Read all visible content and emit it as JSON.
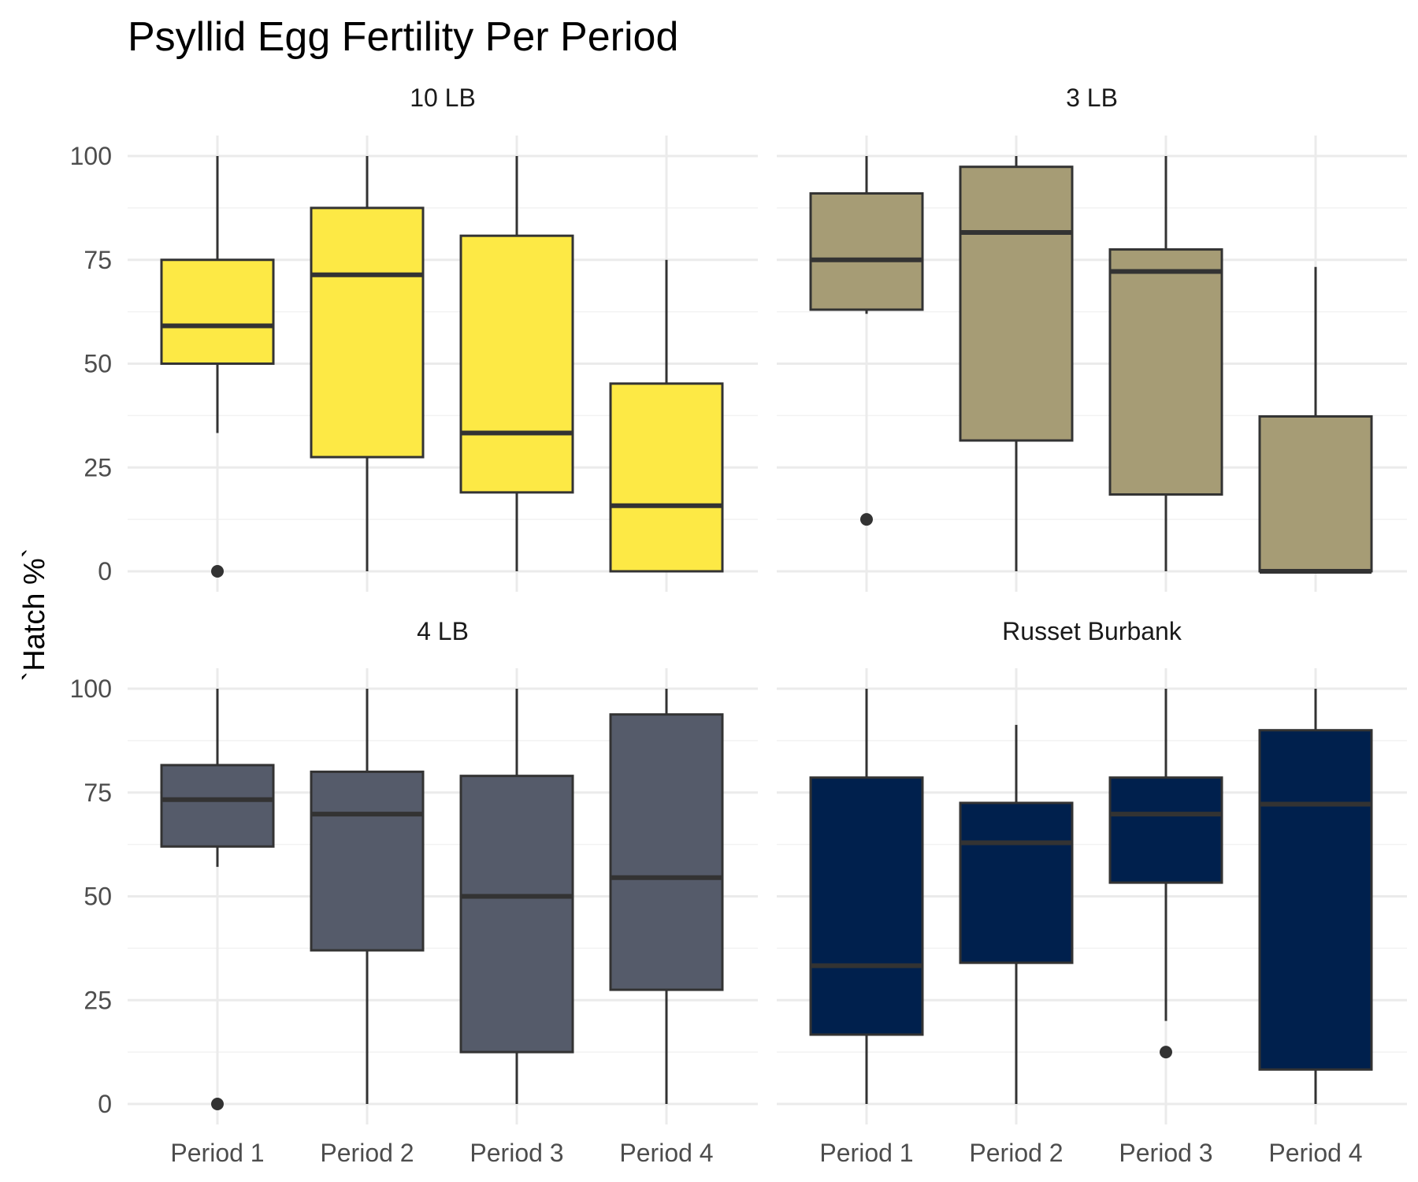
{
  "chart_data": {
    "type": "boxplot",
    "title": "Psyllid Egg Fertility Per Period",
    "ylabel": "`Hatch %`",
    "xlabel": "",
    "ylim": [
      0,
      100
    ],
    "yticks": [
      0,
      25,
      50,
      75,
      100
    ],
    "grid": true,
    "legend": "none",
    "categories": [
      "Period 1",
      "Period 2",
      "Period 3",
      "Period 4"
    ],
    "facets": [
      {
        "name": "10 LB",
        "color": "#FDE945",
        "boxes": [
          {
            "category": "Period 1",
            "lower_whisker": 33.3,
            "q1": 50,
            "median": 59.1,
            "q3": 75,
            "upper_whisker": 100,
            "outliers": [
              0
            ]
          },
          {
            "category": "Period 2",
            "lower_whisker": 0,
            "q1": 27.5,
            "median": 71.4,
            "q3": 87.5,
            "upper_whisker": 100,
            "outliers": []
          },
          {
            "category": "Period 3",
            "lower_whisker": 0,
            "q1": 19,
            "median": 33.3,
            "q3": 80.8,
            "upper_whisker": 100,
            "outliers": []
          },
          {
            "category": "Period 4",
            "lower_whisker": 0,
            "q1": 0,
            "median": 15.8,
            "q3": 45.2,
            "upper_whisker": 75,
            "outliers": []
          }
        ]
      },
      {
        "name": "3 LB",
        "color": "#A69C75",
        "boxes": [
          {
            "category": "Period 1",
            "lower_whisker": 62,
            "q1": 63,
            "median": 75,
            "q3": 91,
            "upper_whisker": 100,
            "outliers": [
              12.5
            ]
          },
          {
            "category": "Period 2",
            "lower_whisker": 0,
            "q1": 31.5,
            "median": 81.6,
            "q3": 97.4,
            "upper_whisker": 100,
            "outliers": []
          },
          {
            "category": "Period 3",
            "lower_whisker": 0,
            "q1": 18.5,
            "median": 72.2,
            "q3": 77.5,
            "upper_whisker": 100,
            "outliers": []
          },
          {
            "category": "Period 4",
            "lower_whisker": 0,
            "q1": 0,
            "median": 0,
            "q3": 37.3,
            "upper_whisker": 73.3,
            "outliers": []
          }
        ]
      },
      {
        "name": "4 LB",
        "color": "#555B6A",
        "boxes": [
          {
            "category": "Period 1",
            "lower_whisker": 57.1,
            "q1": 62,
            "median": 73.3,
            "q3": 81.6,
            "upper_whisker": 100,
            "outliers": [
              0
            ]
          },
          {
            "category": "Period 2",
            "lower_whisker": 0,
            "q1": 37,
            "median": 69.8,
            "q3": 80,
            "upper_whisker": 100,
            "outliers": []
          },
          {
            "category": "Period 3",
            "lower_whisker": 0,
            "q1": 12.5,
            "median": 50,
            "q3": 79,
            "upper_whisker": 100,
            "outliers": []
          },
          {
            "category": "Period 4",
            "lower_whisker": 0,
            "q1": 27.5,
            "median": 54.5,
            "q3": 93.8,
            "upper_whisker": 100,
            "outliers": []
          }
        ]
      },
      {
        "name": "Russet Burbank",
        "color": "#00204D",
        "boxes": [
          {
            "category": "Period 1",
            "lower_whisker": 0,
            "q1": 16.7,
            "median": 33.3,
            "q3": 78.6,
            "upper_whisker": 100,
            "outliers": []
          },
          {
            "category": "Period 2",
            "lower_whisker": 0,
            "q1": 34,
            "median": 62.9,
            "q3": 72.5,
            "upper_whisker": 91.3,
            "outliers": []
          },
          {
            "category": "Period 3",
            "lower_whisker": 20,
            "q1": 53.3,
            "median": 69.8,
            "q3": 78.6,
            "upper_whisker": 100,
            "outliers": [
              12.5
            ]
          },
          {
            "category": "Period 4",
            "lower_whisker": 0,
            "q1": 8.3,
            "median": 72.2,
            "q3": 90,
            "upper_whisker": 100,
            "outliers": []
          }
        ]
      }
    ]
  }
}
